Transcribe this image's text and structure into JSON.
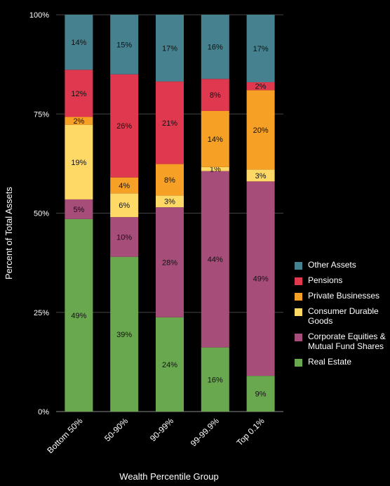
{
  "chart_data": {
    "type": "bar",
    "stacked": true,
    "xlabel": "Wealth Percentile Group",
    "ylabel": "Percent of Total Assets",
    "ylim": [
      0,
      100
    ],
    "yticks": [
      "0%",
      "25%",
      "50%",
      "75%",
      "100%"
    ],
    "categories": [
      "Bottom 50%",
      "50-90%",
      "90-99%",
      "99-99.9%",
      "Top 0.1%"
    ],
    "legend_position": "right",
    "grid": true,
    "series": [
      {
        "name": "Real Estate",
        "color": "#6aa84f",
        "values": [
          49,
          39,
          24,
          16,
          9
        ],
        "labels": [
          "49%",
          "39%",
          "24%",
          "16%",
          "9%"
        ]
      },
      {
        "name": "Corporate Equities & Mutual Fund Shares",
        "color": "#a64d79",
        "values": [
          5,
          10,
          28,
          44,
          49
        ],
        "labels": [
          "5%",
          "10%",
          "28%",
          "44%",
          "49%"
        ]
      },
      {
        "name": "Consumer Durable Goods",
        "color": "#ffd966",
        "values": [
          19,
          6,
          3,
          1,
          3
        ],
        "labels": [
          "19%",
          "6%",
          "3%",
          "1%",
          "3%"
        ]
      },
      {
        "name": "Private Businesses",
        "color": "#f6a025",
        "values": [
          2,
          4,
          8,
          14,
          20
        ],
        "labels": [
          "2%",
          "4%",
          "8%",
          "14%",
          "20%"
        ]
      },
      {
        "name": "Pensions",
        "color": "#e0384f",
        "values": [
          12,
          26,
          21,
          8,
          2
        ],
        "labels": [
          "12%",
          "26%",
          "21%",
          "8%",
          "2%"
        ]
      },
      {
        "name": "Other Assets",
        "color": "#45818e",
        "values": [
          14,
          15,
          17,
          16,
          17
        ],
        "labels": [
          "14%",
          "15%",
          "17%",
          "16%",
          "17%"
        ]
      }
    ]
  }
}
